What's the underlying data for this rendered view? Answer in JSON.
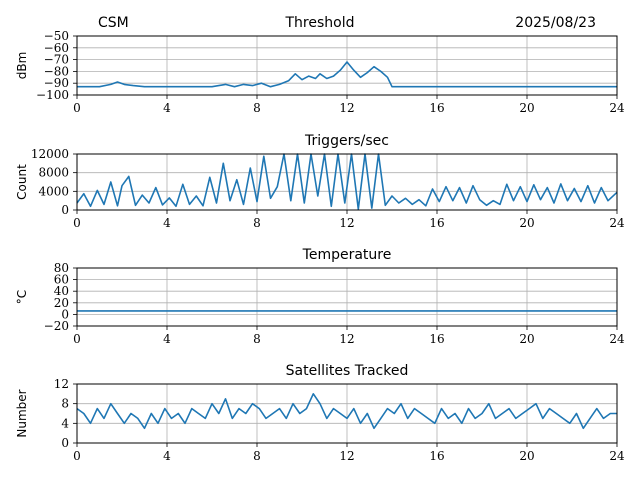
{
  "header": {
    "left": "CSM",
    "center": "Threshold",
    "right": "2025/08/23"
  },
  "colors": {
    "series": "#1f77b4",
    "grid": "#b0b0b0"
  },
  "chart_data": [
    {
      "type": "line",
      "title": "",
      "ylabel": "dBm",
      "xlim": [
        0,
        24
      ],
      "ylim": [
        -100,
        -50
      ],
      "xticks": [
        0,
        4,
        8,
        12,
        16,
        20,
        24
      ],
      "yticks": [
        -100,
        -90,
        -80,
        -70,
        -60,
        -50
      ],
      "ytick_labels": [
        "−100",
        "−90",
        "−80",
        "−70",
        "−60",
        "−50"
      ],
      "grid": true,
      "x": [
        0,
        0.5,
        1.0,
        1.5,
        1.8,
        2.1,
        2.5,
        3.0,
        3.5,
        4.0,
        5.0,
        6.0,
        6.6,
        7.0,
        7.4,
        7.8,
        8.2,
        8.6,
        9.0,
        9.4,
        9.7,
        10.0,
        10.3,
        10.6,
        10.8,
        11.1,
        11.4,
        11.7,
        12.0,
        12.3,
        12.6,
        12.9,
        13.2,
        13.5,
        13.8,
        14.0,
        14.5,
        15.0,
        16.0,
        17.0,
        18.0,
        19.0,
        20.0,
        21.0,
        22.0,
        23.0,
        24.0
      ],
      "y": [
        -93,
        -93,
        -93,
        -91,
        -89,
        -91,
        -92,
        -93,
        -93,
        -93,
        -93,
        -93,
        -91,
        -93,
        -91,
        -92,
        -90,
        -93,
        -91,
        -88,
        -82,
        -87,
        -84,
        -86,
        -82,
        -86,
        -84,
        -79,
        -72,
        -79,
        -85,
        -81,
        -76,
        -80,
        -85,
        -93,
        -93,
        -93,
        -93,
        -93,
        -93,
        -93,
        -93,
        -93,
        -93,
        -93,
        -93
      ]
    },
    {
      "type": "line",
      "title": "Triggers/sec",
      "ylabel": "Count",
      "xlim": [
        0,
        24
      ],
      "ylim": [
        0,
        12000
      ],
      "xticks": [
        0,
        4,
        8,
        12,
        16,
        20,
        24
      ],
      "yticks": [
        0,
        4000,
        8000,
        12000
      ],
      "ytick_labels": [
        "0",
        "4000",
        "8000",
        "12000"
      ],
      "grid": true,
      "x": [
        0,
        0.3,
        0.6,
        0.9,
        1.2,
        1.5,
        1.8,
        2.0,
        2.3,
        2.6,
        2.9,
        3.2,
        3.5,
        3.8,
        4.1,
        4.4,
        4.7,
        5.0,
        5.3,
        5.6,
        5.9,
        6.2,
        6.5,
        6.8,
        7.1,
        7.4,
        7.7,
        8.0,
        8.3,
        8.6,
        8.9,
        9.2,
        9.5,
        9.8,
        10.1,
        10.4,
        10.7,
        11.0,
        11.3,
        11.6,
        11.9,
        12.2,
        12.5,
        12.8,
        13.1,
        13.4,
        13.7,
        14.0,
        14.3,
        14.6,
        14.9,
        15.2,
        15.5,
        15.8,
        16.1,
        16.4,
        16.7,
        17.0,
        17.3,
        17.6,
        17.9,
        18.2,
        18.5,
        18.8,
        19.1,
        19.4,
        19.7,
        20.0,
        20.3,
        20.6,
        20.9,
        21.2,
        21.5,
        21.8,
        22.1,
        22.4,
        22.7,
        23.0,
        23.3,
        23.6,
        24.0
      ],
      "y": [
        1500,
        3500,
        800,
        4200,
        1200,
        6000,
        900,
        5200,
        7200,
        1000,
        3200,
        1500,
        4800,
        1100,
        2600,
        800,
        5500,
        1200,
        3000,
        900,
        7000,
        1500,
        10000,
        2000,
        6500,
        1200,
        9000,
        1800,
        11500,
        2500,
        5000,
        12000,
        2000,
        12000,
        1500,
        12000,
        3000,
        12000,
        800,
        12000,
        1500,
        12000,
        200,
        12000,
        400,
        12000,
        1000,
        3000,
        1500,
        2500,
        1200,
        2200,
        900,
        4500,
        1800,
        5000,
        2000,
        4800,
        1500,
        5200,
        2200,
        1000,
        2000,
        1200,
        5500,
        2000,
        5000,
        1800,
        5400,
        2200,
        4800,
        1500,
        5600,
        2000,
        4600,
        1800,
        5200,
        1500,
        4800,
        2000,
        3800
      ]
    },
    {
      "type": "line",
      "title": "Temperature",
      "ylabel": "°C",
      "xlim": [
        0,
        24
      ],
      "ylim": [
        -20,
        80
      ],
      "xticks": [
        0,
        4,
        8,
        12,
        16,
        20,
        24
      ],
      "yticks": [
        -20,
        0,
        20,
        40,
        60,
        80
      ],
      "ytick_labels": [
        "−20",
        "0",
        "20",
        "40",
        "60",
        "80"
      ],
      "grid": true,
      "x": [
        0,
        24
      ],
      "y": [
        6,
        6
      ]
    },
    {
      "type": "line",
      "title": "Satellites Tracked",
      "ylabel": "Number",
      "xlim": [
        0,
        24
      ],
      "ylim": [
        0,
        12
      ],
      "xticks": [
        0,
        4,
        8,
        12,
        16,
        20,
        24
      ],
      "yticks": [
        0,
        4,
        8,
        12
      ],
      "ytick_labels": [
        "0",
        "4",
        "8",
        "12"
      ],
      "grid": true,
      "x": [
        0,
        0.3,
        0.6,
        0.9,
        1.2,
        1.5,
        1.8,
        2.1,
        2.4,
        2.7,
        3.0,
        3.3,
        3.6,
        3.9,
        4.2,
        4.5,
        4.8,
        5.1,
        5.4,
        5.7,
        6.0,
        6.3,
        6.6,
        6.9,
        7.2,
        7.5,
        7.8,
        8.1,
        8.4,
        8.7,
        9.0,
        9.3,
        9.6,
        9.9,
        10.2,
        10.5,
        10.8,
        11.1,
        11.4,
        11.7,
        12.0,
        12.3,
        12.6,
        12.9,
        13.2,
        13.5,
        13.8,
        14.1,
        14.4,
        14.7,
        15.0,
        15.3,
        15.6,
        15.9,
        16.2,
        16.5,
        16.8,
        17.1,
        17.4,
        17.7,
        18.0,
        18.3,
        18.6,
        18.9,
        19.2,
        19.5,
        19.8,
        20.1,
        20.4,
        20.7,
        21.0,
        21.3,
        21.6,
        21.9,
        22.2,
        22.5,
        22.8,
        23.1,
        23.4,
        23.7,
        24.0
      ],
      "y": [
        7,
        6,
        4,
        7,
        5,
        8,
        6,
        4,
        6,
        5,
        3,
        6,
        4,
        7,
        5,
        6,
        4,
        7,
        6,
        5,
        8,
        6,
        9,
        5,
        7,
        6,
        8,
        7,
        5,
        6,
        7,
        5,
        8,
        6,
        7,
        10,
        8,
        5,
        7,
        6,
        5,
        7,
        4,
        6,
        3,
        5,
        7,
        6,
        8,
        5,
        7,
        6,
        5,
        4,
        7,
        5,
        6,
        4,
        7,
        5,
        6,
        8,
        5,
        6,
        7,
        5,
        6,
        7,
        8,
        5,
        7,
        6,
        5,
        4,
        6,
        3,
        5,
        7,
        5,
        6,
        6
      ]
    }
  ]
}
